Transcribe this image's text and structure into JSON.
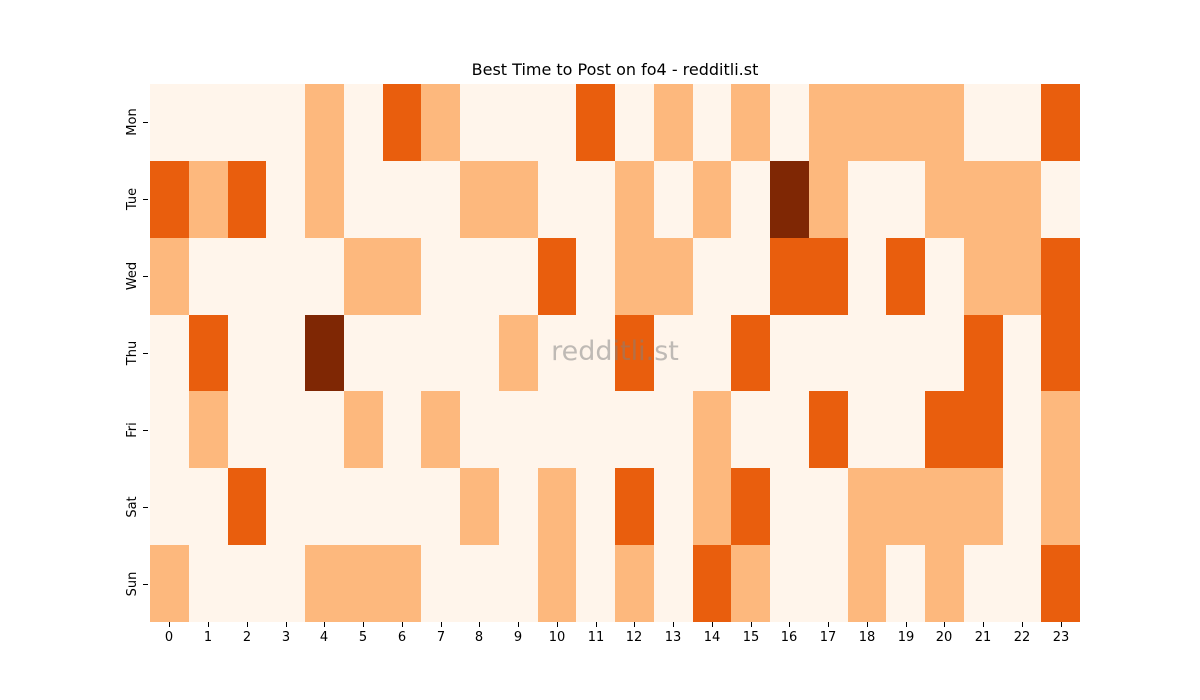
{
  "chart_data": {
    "type": "heatmap",
    "title": "Best Time to Post on fo4 - redditli.st",
    "xlabel": "",
    "ylabel": "",
    "x": [
      "0",
      "1",
      "2",
      "3",
      "4",
      "5",
      "6",
      "7",
      "8",
      "9",
      "10",
      "11",
      "12",
      "13",
      "14",
      "15",
      "16",
      "17",
      "18",
      "19",
      "20",
      "21",
      "22",
      "23"
    ],
    "y": [
      "Mon",
      "Tue",
      "Wed",
      "Thu",
      "Fri",
      "Sat",
      "Sun"
    ],
    "value_scale": "ordinal levels 0 (lowest) to 3 (highest)",
    "values": [
      [
        0,
        0,
        0,
        0,
        1,
        0,
        2,
        1,
        0,
        0,
        0,
        2,
        0,
        1,
        0,
        1,
        0,
        1,
        1,
        1,
        1,
        0,
        0,
        2
      ],
      [
        2,
        1,
        2,
        0,
        1,
        0,
        0,
        0,
        1,
        1,
        0,
        0,
        1,
        0,
        1,
        0,
        3,
        1,
        0,
        0,
        1,
        1,
        1,
        0
      ],
      [
        1,
        0,
        0,
        0,
        0,
        1,
        1,
        0,
        0,
        0,
        2,
        0,
        1,
        1,
        0,
        0,
        2,
        2,
        0,
        2,
        0,
        1,
        1,
        2
      ],
      [
        0,
        2,
        0,
        0,
        3,
        0,
        0,
        0,
        0,
        1,
        0,
        0,
        2,
        0,
        0,
        2,
        0,
        0,
        0,
        0,
        0,
        2,
        0,
        2
      ],
      [
        0,
        1,
        0,
        0,
        0,
        1,
        0,
        1,
        0,
        0,
        0,
        0,
        0,
        0,
        1,
        0,
        0,
        2,
        0,
        0,
        2,
        2,
        0,
        1
      ],
      [
        0,
        0,
        2,
        0,
        0,
        0,
        0,
        0,
        1,
        0,
        1,
        0,
        2,
        0,
        1,
        2,
        0,
        0,
        1,
        1,
        1,
        1,
        0,
        1
      ],
      [
        1,
        0,
        0,
        0,
        1,
        1,
        1,
        0,
        0,
        0,
        1,
        0,
        1,
        0,
        2,
        1,
        0,
        0,
        1,
        0,
        1,
        0,
        0,
        2
      ]
    ],
    "colormap": [
      "#fff5eb",
      "#fdb87d",
      "#e95e0d",
      "#7f2704"
    ],
    "colorbar": false,
    "grid": false,
    "watermark": "redditli.st"
  }
}
